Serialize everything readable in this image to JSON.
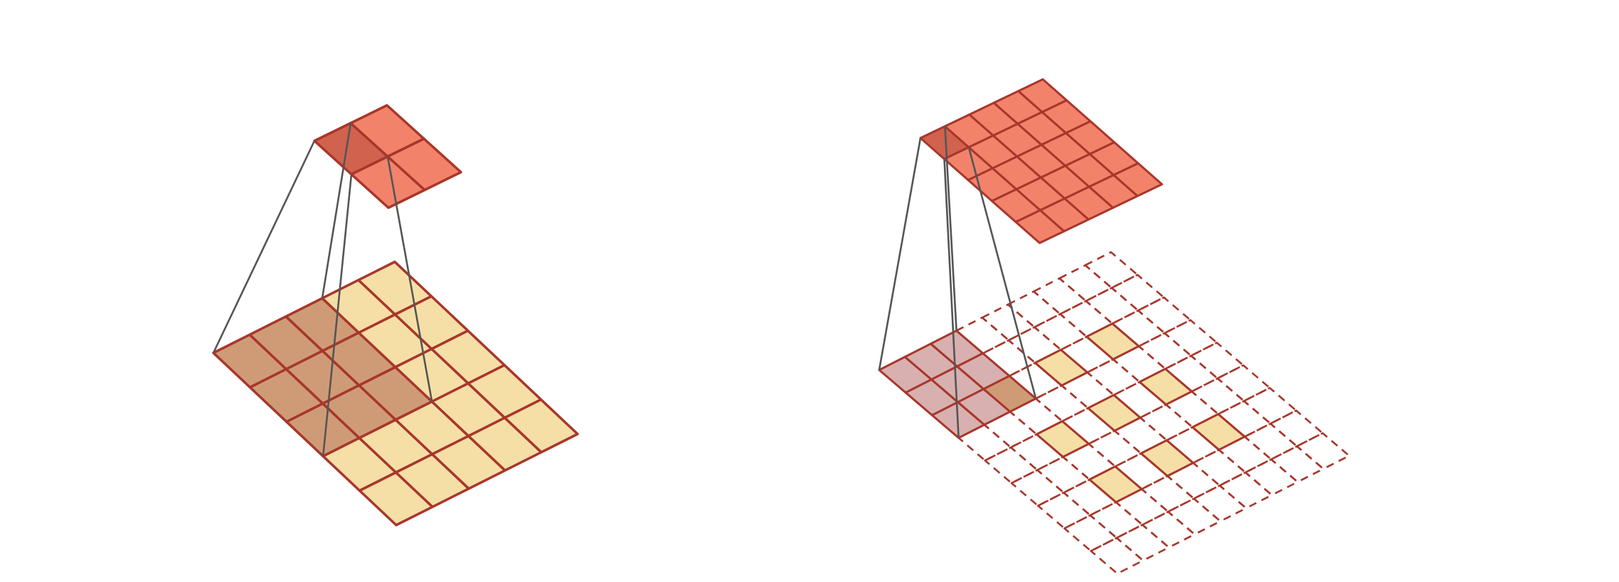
{
  "colors": {
    "background": "#ffffff",
    "input_cell": "#f5dfa6",
    "input_covered_cell": "#cf9b77",
    "output_cell": "#f2836a",
    "output_active_cell": "#d0624e",
    "grid_line": "#a8362b",
    "projection_line": "#555555",
    "kernel_overlay_cell": "#d8b0b0"
  },
  "diagrams": [
    {
      "id": "strided-convolution",
      "input": {
        "rows": 5,
        "cols": 5,
        "covered_rows": 3,
        "covered_cols": 3,
        "padding": "none"
      },
      "output": {
        "rows": 2,
        "cols": 2,
        "active_cell": [
          0,
          0
        ]
      }
    },
    {
      "id": "transposed-convolution",
      "input": {
        "rows": 3,
        "cols": 3,
        "stride_dilation": 2,
        "padding": 2,
        "total_rows": 9,
        "total_cols": 9,
        "grid_style": "dashed"
      },
      "kernel": {
        "rows": 3,
        "cols": 3,
        "overlap_input_cell": [
          0,
          0
        ]
      },
      "output": {
        "rows": 5,
        "cols": 5,
        "active_cell": [
          0,
          0
        ]
      }
    }
  ]
}
